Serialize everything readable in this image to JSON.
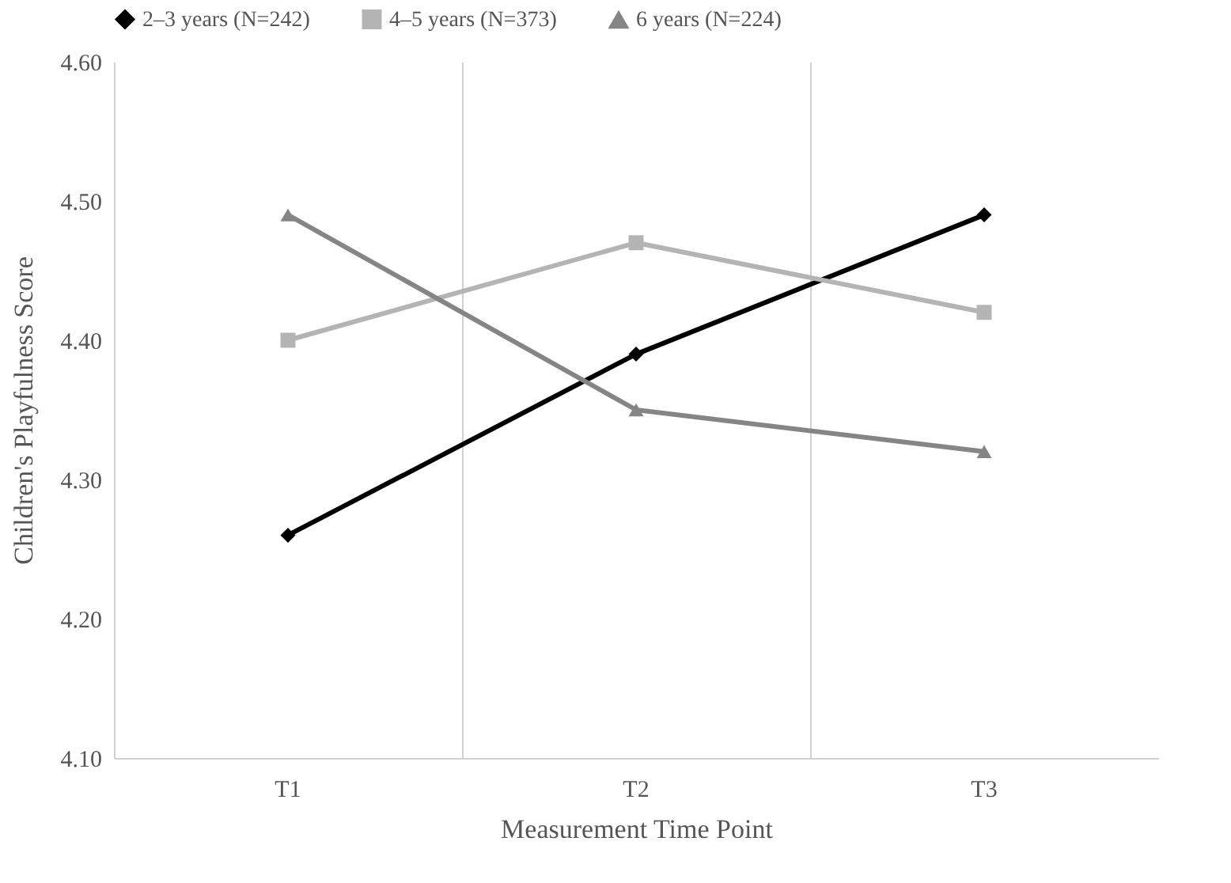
{
  "chart_data": {
    "type": "line",
    "xlabel": "Measurement Time Point",
    "ylabel": "Children's Playfulness Score",
    "categories": [
      "T1",
      "T2",
      "T3"
    ],
    "series": [
      {
        "name": "2–3 years (N=242)",
        "color": "#000000",
        "marker": "diamond",
        "values": [
          4.26,
          4.39,
          4.49
        ]
      },
      {
        "name": "4–5 years (N=373)",
        "color": "#b4b4b4",
        "marker": "square",
        "values": [
          4.4,
          4.47,
          4.42
        ]
      },
      {
        "name": "6 years (N=224)",
        "color": "#858585",
        "marker": "triangle",
        "values": [
          4.49,
          4.35,
          4.32
        ]
      }
    ],
    "ylim": [
      4.1,
      4.6
    ],
    "yticks": [
      {
        "value": 4.1,
        "label": "4.10"
      },
      {
        "value": 4.2,
        "label": "4.20"
      },
      {
        "value": 4.3,
        "label": "4.30"
      },
      {
        "value": 4.4,
        "label": "4.40"
      },
      {
        "value": 4.5,
        "label": "4.50"
      },
      {
        "value": 4.6,
        "label": "4.60"
      }
    ],
    "grid": "x",
    "legend": "top",
    "line_style": "solid"
  }
}
